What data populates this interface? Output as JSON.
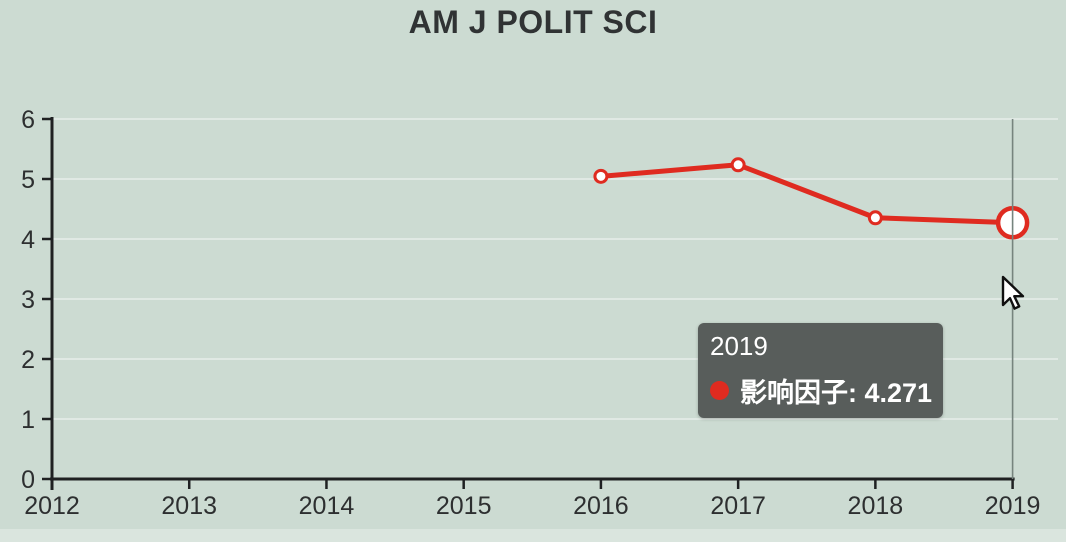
{
  "page": {
    "background_color": "#ccdbd2",
    "axis_color": "#1f2122",
    "text_color": "#2d2f30",
    "grid_color": "rgba(255,255,255,0.40)",
    "crosshair_color": "#76847e"
  },
  "chart_data": {
    "type": "line",
    "title": "AM J POLIT SCI",
    "xlabel": "",
    "ylabel": "",
    "xlim": [
      2012,
      2019
    ],
    "ylim": [
      0,
      6
    ],
    "x_tick_labels": [
      "2012",
      "2013",
      "2014",
      "2015",
      "2016",
      "2017",
      "2018",
      "2019"
    ],
    "y_tick_labels": [
      "0",
      "1",
      "2",
      "3",
      "4",
      "5",
      "6"
    ],
    "grid": "faint horizontal gridlines at each integer",
    "legend_position": "none",
    "series": [
      {
        "name": "影响因子",
        "color": "#df2b20",
        "marker": "open-circle",
        "points": [
          {
            "x": 2016,
            "y": 5.044
          },
          {
            "x": 2017,
            "y": 5.237
          },
          {
            "x": 2018,
            "y": 4.354
          },
          {
            "x": 2019,
            "y": 4.271
          }
        ]
      }
    ],
    "hover": {
      "x": 2019,
      "y": 4.271,
      "crosshair": "vertical"
    }
  },
  "tooltip": {
    "title": "2019",
    "series_name": "影响因子",
    "value": "4.271",
    "text": "影响因子: 4.271",
    "background_color": "#585d5b",
    "dot_color": "#df2b20"
  }
}
